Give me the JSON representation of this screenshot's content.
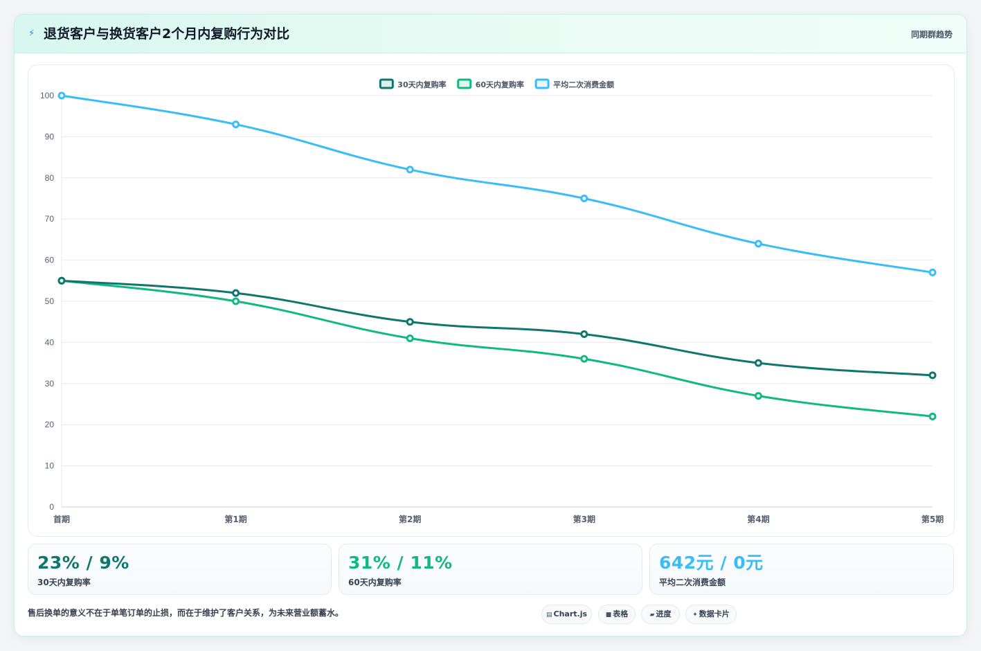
{
  "header": {
    "icon": "bolt-icon",
    "title": "退货客户与换货客户2个月内复购行为对比",
    "subtitle": "同期群趋势"
  },
  "chart_data": {
    "type": "line",
    "categories": [
      "首期",
      "第1期",
      "第2期",
      "第3期",
      "第4期",
      "第5期"
    ],
    "series": [
      {
        "name": "30天内复购率",
        "values": [
          55,
          52,
          45,
          42,
          35,
          32
        ],
        "color": "#0f766e"
      },
      {
        "name": "60天内复购率",
        "values": [
          55,
          50,
          41,
          36,
          27,
          22
        ],
        "color": "#10b981"
      },
      {
        "name": "平均二次消费金额",
        "values": [
          100,
          93,
          82,
          75,
          64,
          57
        ],
        "color": "#38bdf8"
      }
    ],
    "ylim": [
      0,
      100
    ],
    "yticks": [
      0,
      10,
      20,
      30,
      40,
      50,
      60,
      70,
      80,
      90,
      100
    ],
    "grid": true,
    "legend_position": "top-center"
  },
  "stats": [
    {
      "value": "23% / 9%",
      "label": "30天内复购率",
      "color": "#0f766e"
    },
    {
      "value": "31% / 11%",
      "label": "60天内复购率",
      "color": "#10b981"
    },
    {
      "value": "642元 / 0元",
      "label": "平均二次消费金额",
      "color": "#38bdf8"
    }
  ],
  "footer": {
    "note": "售后换单的意义不在于单笔订单的止损，而在于维护了客户关系，为未来营业额蓄水。",
    "tags": [
      {
        "icon": "chart-icon",
        "glyph": "▤",
        "label": "Chart.js"
      },
      {
        "icon": "table-icon",
        "glyph": "■",
        "label": "表格"
      },
      {
        "icon": "progress-icon",
        "glyph": "▰",
        "label": "进度"
      },
      {
        "icon": "card-icon",
        "glyph": "✦",
        "label": "数据卡片"
      }
    ]
  }
}
